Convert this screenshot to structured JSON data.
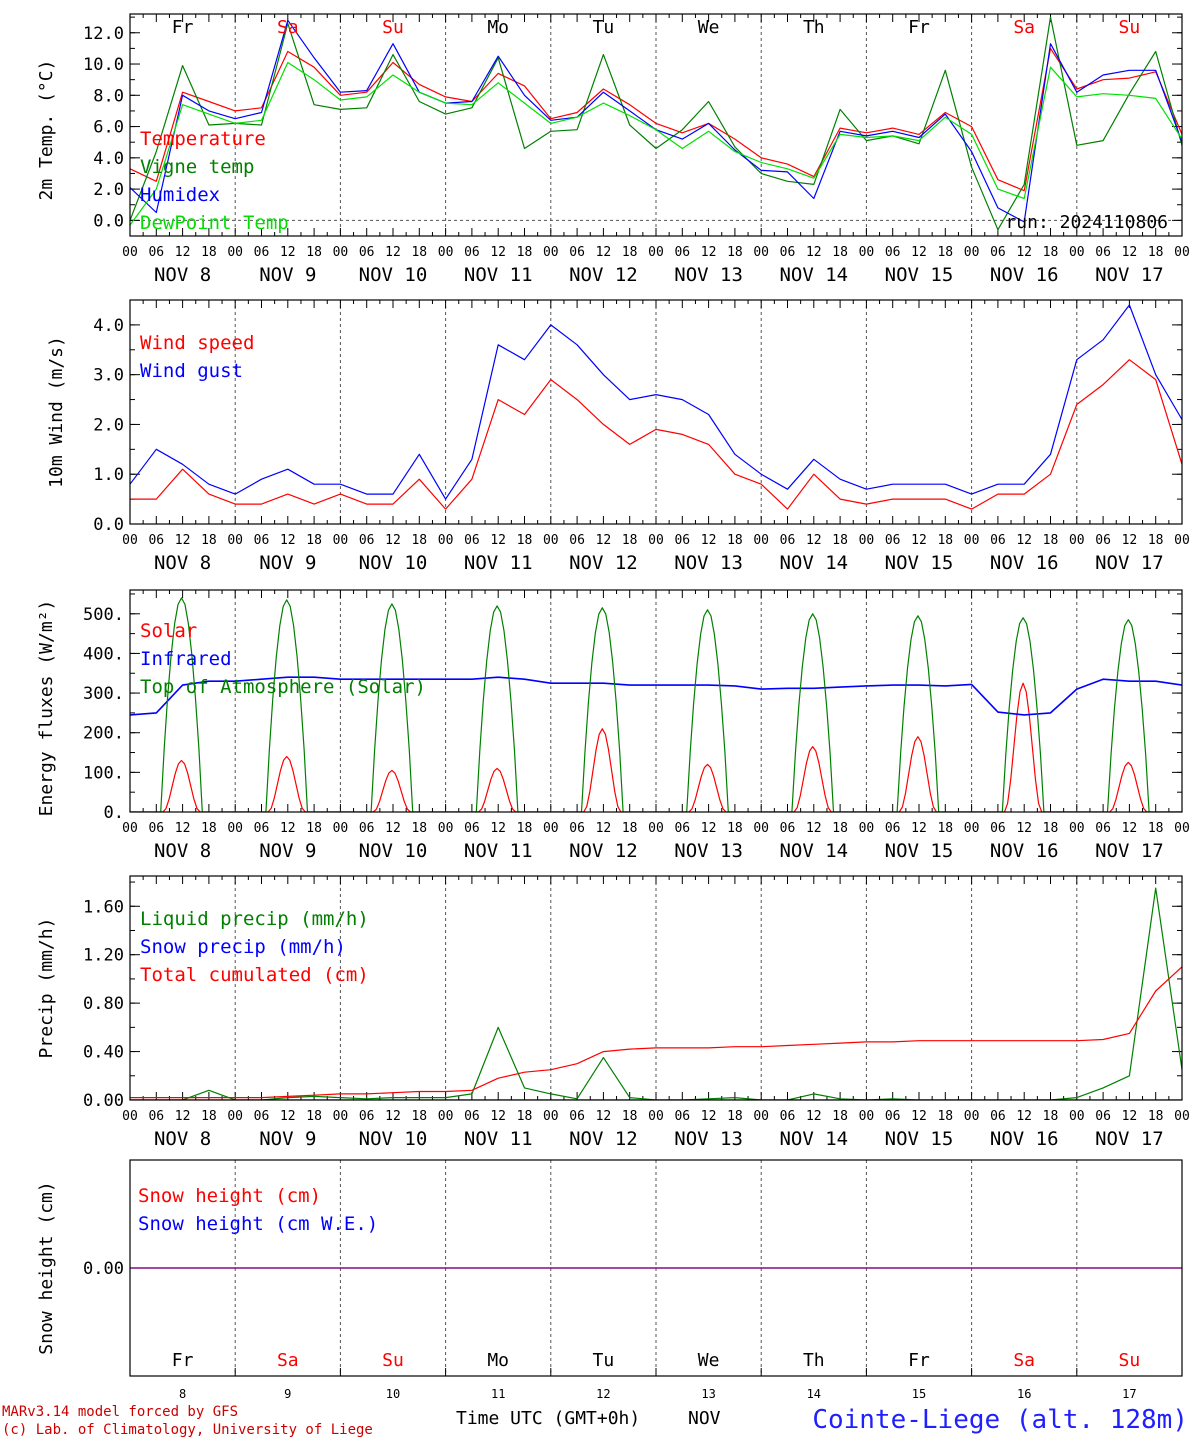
{
  "chart_data": [
    {
      "type": "line",
      "ylabel": "2m Temp. (°C)",
      "ylim": [
        -1.0,
        13.2
      ],
      "yticks": [
        0.0,
        2.0,
        4.0,
        6.0,
        8.0,
        10.0,
        12.0
      ],
      "ytick_labels": [
        "0.0",
        "2.0",
        "4.0",
        "6.0",
        "8.0",
        "10.0",
        "12.0"
      ],
      "zero_line": true,
      "annotation": "run: 2024110806",
      "x_hours": [
        0,
        6,
        12,
        18,
        24,
        30,
        36,
        42,
        48,
        54,
        60,
        66,
        72,
        78,
        84,
        90,
        96,
        102,
        108,
        114,
        120,
        126,
        132,
        138,
        144,
        150,
        156,
        162,
        168,
        174,
        180,
        186,
        192,
        198,
        204,
        210,
        216,
        222,
        228,
        234,
        240
      ],
      "series": [
        {
          "name": "Temperature",
          "color": "#ff0000",
          "values": [
            3.3,
            2.5,
            8.2,
            7.6,
            7.0,
            7.2,
            10.8,
            9.8,
            8.0,
            8.2,
            10.1,
            8.7,
            7.9,
            7.6,
            9.4,
            8.6,
            6.5,
            6.9,
            8.4,
            7.4,
            6.2,
            5.6,
            6.2,
            5.2,
            4.0,
            3.6,
            2.8,
            5.9,
            5.6,
            5.9,
            5.5,
            6.9,
            6.0,
            2.6,
            1.9,
            11.0,
            8.4,
            9.0,
            9.1,
            9.5,
            5.5
          ]
        },
        {
          "name": "Vigne temp",
          "color": "#008000",
          "values": [
            0.0,
            4.4,
            9.9,
            6.1,
            6.2,
            6.1,
            12.6,
            7.4,
            7.1,
            7.2,
            10.6,
            7.6,
            6.8,
            7.2,
            10.4,
            4.6,
            5.7,
            5.8,
            10.6,
            6.1,
            4.6,
            5.8,
            7.6,
            4.7,
            3.0,
            2.5,
            2.3,
            7.1,
            5.1,
            5.4,
            4.9,
            9.6,
            3.4,
            -0.6,
            2.3,
            13.0,
            4.8,
            5.1,
            8.1,
            10.8,
            4.8
          ]
        },
        {
          "name": "Humidex",
          "color": "#0000ff",
          "values": [
            2.1,
            0.5,
            8.0,
            7.0,
            6.5,
            6.9,
            12.8,
            10.4,
            8.2,
            8.3,
            11.3,
            8.2,
            7.5,
            7.6,
            10.5,
            8.0,
            6.4,
            6.6,
            8.2,
            7.0,
            5.8,
            5.2,
            6.2,
            4.5,
            3.2,
            3.1,
            1.4,
            5.7,
            5.4,
            5.7,
            5.3,
            6.8,
            4.4,
            0.8,
            -0.1,
            11.3,
            8.2,
            9.3,
            9.6,
            9.6,
            5.0
          ]
        },
        {
          "name": "DewPoint Temp",
          "color": "#00e000",
          "values": [
            -0.3,
            2.0,
            7.4,
            6.8,
            6.2,
            6.4,
            10.1,
            9.0,
            7.7,
            7.9,
            9.3,
            8.2,
            7.5,
            7.4,
            8.8,
            7.5,
            6.2,
            6.6,
            7.5,
            6.7,
            5.8,
            4.6,
            5.7,
            4.4,
            3.7,
            3.3,
            2.7,
            5.5,
            5.3,
            5.4,
            5.1,
            6.6,
            5.5,
            2.0,
            1.4,
            9.8,
            7.9,
            8.1,
            8.0,
            7.8,
            5.2
          ]
        }
      ]
    },
    {
      "type": "line",
      "ylabel": "10m Wind (m/s)",
      "ylim": [
        0.0,
        4.5
      ],
      "yticks": [
        0.0,
        1.0,
        2.0,
        3.0,
        4.0
      ],
      "ytick_labels": [
        "0.0",
        "1.0",
        "2.0",
        "3.0",
        "4.0"
      ],
      "x_hours": [
        0,
        6,
        12,
        18,
        24,
        30,
        36,
        42,
        48,
        54,
        60,
        66,
        72,
        78,
        84,
        90,
        96,
        102,
        108,
        114,
        120,
        126,
        132,
        138,
        144,
        150,
        156,
        162,
        168,
        174,
        180,
        186,
        192,
        198,
        204,
        210,
        216,
        222,
        228,
        234,
        240
      ],
      "series": [
        {
          "name": "Wind speed",
          "color": "#ff0000",
          "values": [
            0.5,
            0.5,
            1.1,
            0.6,
            0.4,
            0.4,
            0.6,
            0.4,
            0.6,
            0.4,
            0.4,
            0.9,
            0.3,
            0.9,
            2.5,
            2.2,
            2.9,
            2.5,
            2.0,
            1.6,
            1.9,
            1.8,
            1.6,
            1.0,
            0.8,
            0.3,
            1.0,
            0.5,
            0.4,
            0.5,
            0.5,
            0.5,
            0.3,
            0.6,
            0.6,
            1.0,
            2.4,
            2.8,
            3.3,
            2.9,
            1.2
          ]
        },
        {
          "name": "Wind gust",
          "color": "#0000ff",
          "values": [
            0.8,
            1.5,
            1.2,
            0.8,
            0.6,
            0.9,
            1.1,
            0.8,
            0.8,
            0.6,
            0.6,
            1.4,
            0.5,
            1.3,
            3.6,
            3.3,
            4.0,
            3.6,
            3.0,
            2.5,
            2.6,
            2.5,
            2.2,
            1.4,
            1.0,
            0.7,
            1.3,
            0.9,
            0.7,
            0.8,
            0.8,
            0.8,
            0.6,
            0.8,
            0.8,
            1.4,
            3.3,
            3.7,
            4.4,
            3.0,
            2.1
          ]
        }
      ]
    },
    {
      "type": "line",
      "ylabel": "Energy fluxes (W/m²)",
      "ylim": [
        0,
        560
      ],
      "yticks": [
        0,
        100,
        200,
        300,
        400,
        500
      ],
      "ytick_labels": [
        "0.",
        "100.",
        "200.",
        "300.",
        "400.",
        "500."
      ],
      "days": [
        "NOV 8",
        "NOV 9",
        "NOV 10",
        "NOV 11",
        "NOV 12",
        "NOV 13",
        "NOV 14",
        "NOV 15",
        "NOV 16",
        "NOV 17"
      ],
      "series": [
        {
          "name": "Solar",
          "color": "#ff0000",
          "daily_peak": [
            130,
            140,
            105,
            110,
            210,
            120,
            165,
            190,
            325,
            125
          ]
        },
        {
          "name": "Infrared",
          "color": "#0000ff",
          "x_hours": [
            0,
            6,
            12,
            18,
            24,
            30,
            36,
            42,
            48,
            54,
            60,
            66,
            72,
            78,
            84,
            90,
            96,
            102,
            108,
            114,
            120,
            126,
            132,
            138,
            144,
            150,
            156,
            162,
            168,
            174,
            180,
            186,
            192,
            198,
            204,
            210,
            216,
            222,
            228,
            234,
            240
          ],
          "values": [
            245,
            250,
            320,
            330,
            330,
            335,
            340,
            340,
            335,
            335,
            335,
            335,
            335,
            335,
            340,
            335,
            325,
            325,
            325,
            320,
            320,
            320,
            320,
            318,
            310,
            312,
            312,
            315,
            318,
            320,
            320,
            318,
            322,
            252,
            245,
            250,
            310,
            335,
            330,
            330,
            320
          ]
        },
        {
          "name": "Top of Atmosphere (Solar)",
          "color": "#008000",
          "daily_peak": [
            540,
            535,
            525,
            520,
            515,
            510,
            500,
            495,
            490,
            485
          ]
        }
      ]
    },
    {
      "type": "line",
      "ylabel": "Precip (mm/h)",
      "ylim": [
        0.0,
        1.85
      ],
      "yticks": [
        0.0,
        0.4,
        0.8,
        1.2,
        1.6
      ],
      "ytick_labels": [
        "0.00",
        "0.40",
        "0.80",
        "1.20",
        "1.60"
      ],
      "x_hours": [
        0,
        6,
        12,
        18,
        24,
        30,
        36,
        42,
        48,
        54,
        60,
        66,
        72,
        78,
        84,
        90,
        96,
        102,
        108,
        114,
        120,
        126,
        132,
        138,
        144,
        150,
        156,
        162,
        168,
        174,
        180,
        186,
        192,
        198,
        204,
        210,
        216,
        222,
        228,
        234,
        240
      ],
      "series": [
        {
          "name": "Liquid precip (mm/h)",
          "color": "#008000",
          "values": [
            0,
            0,
            0,
            0.08,
            0,
            0,
            0.02,
            0.03,
            0.02,
            0.01,
            0.02,
            0.02,
            0.02,
            0.05,
            0.6,
            0.1,
            0.05,
            0.01,
            0.35,
            0.02,
            0,
            0,
            0.01,
            0.02,
            0,
            0,
            0.05,
            0.01,
            0,
            0.01,
            0,
            0,
            0,
            0,
            0,
            0,
            0.02,
            0.1,
            0.2,
            1.75,
            0.25
          ]
        },
        {
          "name": "Snow precip (mm/h)",
          "color": "#0000ff",
          "values": [
            0,
            0,
            0,
            0,
            0,
            0,
            0,
            0,
            0,
            0,
            0,
            0,
            0,
            0,
            0,
            0,
            0,
            0,
            0,
            0,
            0,
            0,
            0,
            0,
            0,
            0,
            0,
            0,
            0,
            0,
            0,
            0,
            0,
            0,
            0,
            0,
            0,
            0,
            0,
            0,
            0
          ]
        },
        {
          "name": "Total cumulated (cm)",
          "color": "#ff0000",
          "values": [
            0.02,
            0.02,
            0.02,
            0.02,
            0.02,
            0.02,
            0.03,
            0.04,
            0.05,
            0.05,
            0.06,
            0.07,
            0.07,
            0.08,
            0.18,
            0.23,
            0.25,
            0.3,
            0.4,
            0.42,
            0.43,
            0.43,
            0.43,
            0.44,
            0.44,
            0.45,
            0.46,
            0.47,
            0.48,
            0.48,
            0.49,
            0.49,
            0.49,
            0.49,
            0.49,
            0.49,
            0.49,
            0.5,
            0.55,
            0.9,
            1.1
          ]
        }
      ]
    },
    {
      "type": "line",
      "ylabel": "Snow height (cm)",
      "ylim": [
        -1,
        1
      ],
      "yticks": [
        0.0
      ],
      "ytick_labels": [
        "0.00"
      ],
      "series": [
        {
          "name": "Snow height (cm)",
          "color": "#ff0000",
          "values": [
            0,
            0
          ]
        },
        {
          "name": "Snow height (cm W.E.)",
          "color": "#0000ff",
          "values": [
            0,
            0
          ]
        }
      ]
    }
  ],
  "x_axis": {
    "hour_labels": [
      "00",
      "06",
      "12",
      "18"
    ],
    "end_hour_label": "00",
    "days": [
      "NOV  8",
      "NOV  9",
      "NOV 10",
      "NOV 11",
      "NOV 12",
      "NOV 13",
      "NOV 14",
      "NOV 15",
      "NOV 16",
      "NOV 17"
    ],
    "weekdays": [
      "Fr",
      "Sa",
      "Su",
      "Mo",
      "Tu",
      "We",
      "Th",
      "Fr",
      "Sa",
      "Su"
    ],
    "weekend": [
      false,
      true,
      true,
      false,
      false,
      false,
      false,
      false,
      true,
      true
    ],
    "day_numbers": [
      "8",
      "9",
      "10",
      "11",
      "12",
      "13",
      "14",
      "15",
      "16",
      "17"
    ],
    "title": "Time UTC (GMT+0h)",
    "month": "NOV"
  },
  "footer": {
    "credit_line1": "MARv3.14 model forced by GFS",
    "credit_line2": "(c) Lab. of Climatology, University of Liege",
    "station": "Cointe-Liege (alt. 128m)"
  },
  "colors": {
    "weekday": "#000000",
    "weekend": "#ff0000",
    "station": "#2020ff",
    "credit": "#cc0000",
    "snow_line": "#800080"
  }
}
